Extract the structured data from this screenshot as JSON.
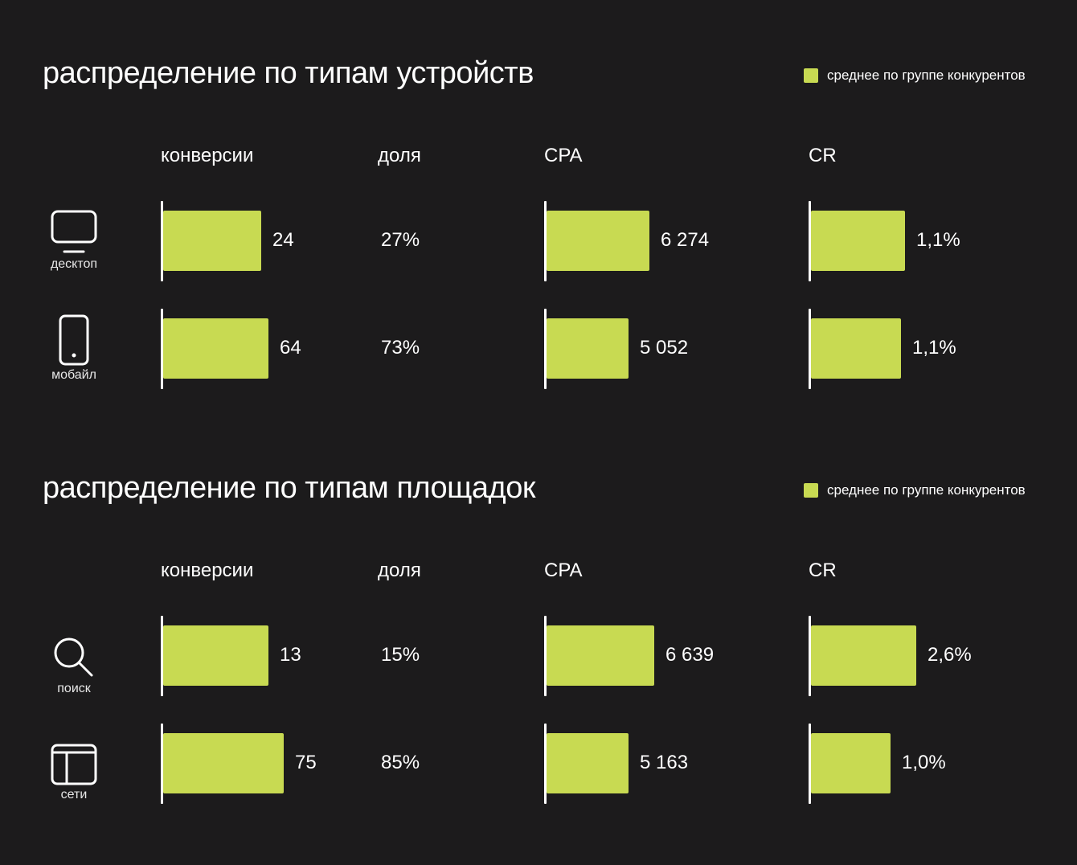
{
  "colors": {
    "accent": "#c8da52",
    "background": "#1c1b1c"
  },
  "columns": [
    "конверсии",
    "доля",
    "CPA",
    "CR"
  ],
  "legend": "среднее по группе конкурентов",
  "chart_data": [
    {
      "type": "bar",
      "title": "распределение по типам устройств",
      "legend": "среднее по группе конкурентов",
      "categories": [
        "десктоп",
        "мобайл"
      ],
      "rows": [
        {
          "label": "десктоп",
          "icon": "monitor-icon",
          "conversions": "24",
          "share": "27%",
          "cpa": "6 274",
          "cr": "1,1%",
          "fill": {
            "conversions": 76,
            "cpa": 80,
            "cr": 73
          }
        },
        {
          "label": "мобайл",
          "icon": "smartphone-icon",
          "conversions": "64",
          "share": "73%",
          "cpa": "5 052",
          "cr": "1,1%",
          "fill": {
            "conversions": 82,
            "cpa": 64,
            "cr": 70
          }
        }
      ]
    },
    {
      "type": "bar",
      "title": "распределение по типам площадок",
      "legend": "среднее по группе конкурентов",
      "categories": [
        "поиск",
        "сети"
      ],
      "rows": [
        {
          "label": "поиск",
          "icon": "search-icon",
          "conversions": "13",
          "share": "15%",
          "cpa": "6 639",
          "cr": "2,6%",
          "fill": {
            "conversions": 82,
            "cpa": 84,
            "cr": 82
          }
        },
        {
          "label": "сети",
          "icon": "layout-icon",
          "conversions": "75",
          "share": "85%",
          "cpa": "5 163",
          "cr": "1,0%",
          "fill": {
            "conversions": 94,
            "cpa": 64,
            "cr": 62
          }
        }
      ]
    }
  ]
}
